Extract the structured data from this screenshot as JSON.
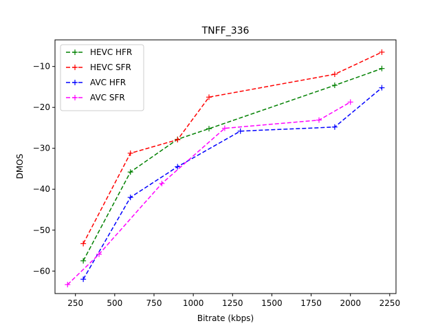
{
  "chart_data": {
    "type": "line",
    "title": "TNFF_336",
    "xlabel": "Bitrate (kbps)",
    "ylabel": "DMOS",
    "xlim": [
      120,
      2290
    ],
    "ylim": [
      -65.5,
      -3.5
    ],
    "xticks": [
      250,
      500,
      750,
      1000,
      1250,
      1500,
      1750,
      2000,
      2250
    ],
    "yticks": [
      -60,
      -50,
      -40,
      -30,
      -20,
      -10
    ],
    "grid": false,
    "legend_position": "top-left",
    "series": [
      {
        "name": "HEVC HFR",
        "color": "#008000",
        "x": [
          300,
          600,
          900,
          1100,
          1900,
          2200
        ],
        "y": [
          -57.5,
          -35.8,
          -27.8,
          -25.2,
          -14.6,
          -10.5
        ]
      },
      {
        "name": "HEVC SFR",
        "color": "#ff0000",
        "x": [
          300,
          600,
          900,
          1100,
          1900,
          2200
        ],
        "y": [
          -53.3,
          -31.2,
          -27.9,
          -17.5,
          -11.9,
          -6.5
        ]
      },
      {
        "name": "AVC HFR",
        "color": "#0000ff",
        "x": [
          300,
          600,
          900,
          1300,
          1900,
          2200
        ],
        "y": [
          -62.0,
          -42.0,
          -34.5,
          -25.8,
          -24.8,
          -15.2
        ]
      },
      {
        "name": "AVC SFR",
        "color": "#ff00ff",
        "x": [
          200,
          400,
          800,
          1200,
          1800,
          2000
        ],
        "y": [
          -63.3,
          -55.9,
          -38.6,
          -25.1,
          -23.1,
          -18.7
        ]
      }
    ]
  }
}
